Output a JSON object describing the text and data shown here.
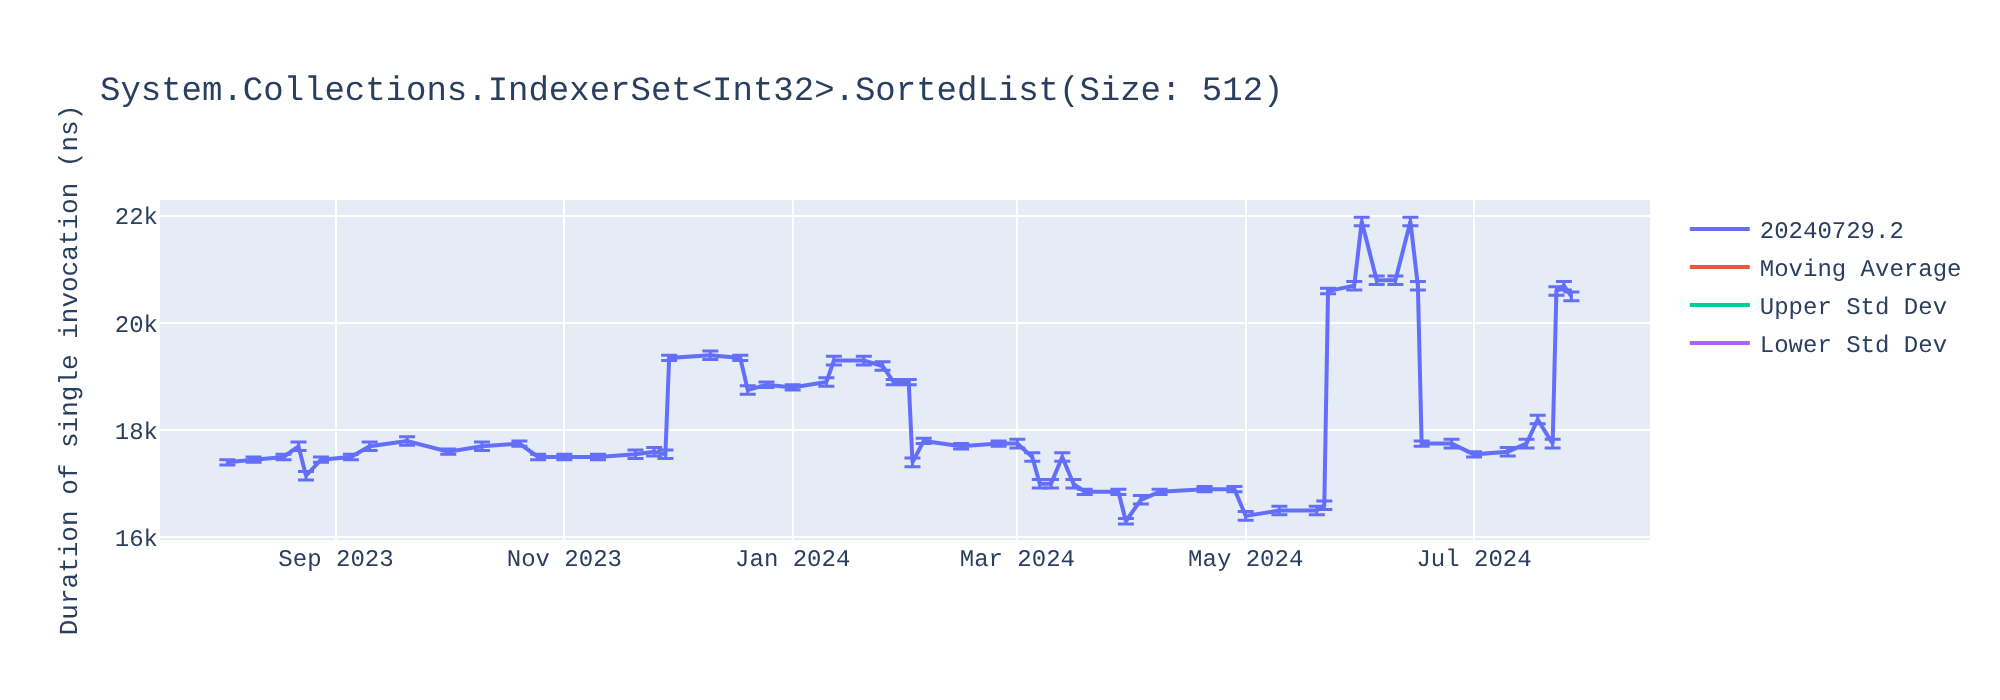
{
  "chart_data": {
    "type": "line",
    "title": "System.Collections.IndexerSet<Int32>.SortedList(Size: 512)",
    "ylabel": "Duration of single invocation (ns)",
    "x": [
      "2023-08-03",
      "2023-08-10",
      "2023-08-18",
      "2023-08-22",
      "2023-08-24",
      "2023-08-28",
      "2023-09-05",
      "2023-09-10",
      "2023-09-20",
      "2023-10-01",
      "2023-10-10",
      "2023-10-20",
      "2023-10-25",
      "2023-11-01",
      "2023-11-10",
      "2023-11-20",
      "2023-11-25",
      "2023-11-28",
      "2023-11-29",
      "2023-12-10",
      "2023-12-18",
      "2023-12-20",
      "2023-12-25",
      "2024-01-01",
      "2024-01-10",
      "2024-01-12",
      "2024-01-20",
      "2024-01-25",
      "2024-01-28",
      "2024-02-01",
      "2024-02-02",
      "2024-02-05",
      "2024-02-15",
      "2024-02-25",
      "2024-03-01",
      "2024-03-05",
      "2024-03-07",
      "2024-03-10",
      "2024-03-13",
      "2024-03-16",
      "2024-03-19",
      "2024-03-28",
      "2024-03-30",
      "2024-04-03",
      "2024-04-08",
      "2024-04-20",
      "2024-04-28",
      "2024-05-01",
      "2024-05-10",
      "2024-05-20",
      "2024-05-22",
      "2024-05-23",
      "2024-05-30",
      "2024-06-01",
      "2024-06-05",
      "2024-06-10",
      "2024-06-14",
      "2024-06-16",
      "2024-06-17",
      "2024-06-25",
      "2024-07-01",
      "2024-07-10",
      "2024-07-15",
      "2024-07-18",
      "2024-07-22",
      "2024-07-23",
      "2024-07-25",
      "2024-07-27"
    ],
    "series": [
      {
        "name": "20240729.2",
        "color": "#636efa",
        "values": [
          17400,
          17450,
          17500,
          17700,
          17150,
          17450,
          17500,
          17700,
          17800,
          17600,
          17700,
          17750,
          17500,
          17500,
          17500,
          17550,
          17600,
          17550,
          19350,
          19400,
          19350,
          18750,
          18850,
          18800,
          18900,
          19300,
          19300,
          19200,
          18900,
          18900,
          17400,
          17800,
          17700,
          17750,
          17750,
          17500,
          17000,
          17000,
          17500,
          17000,
          16850,
          16850,
          16300,
          16700,
          16850,
          16900,
          16900,
          16400,
          16500,
          16500,
          16600,
          20600,
          20700,
          21900,
          20800,
          20800,
          21900,
          20700,
          17750,
          17750,
          17550,
          17600,
          17750,
          18200,
          17750,
          20600,
          20700,
          20500
        ],
        "errors": [
          50,
          50,
          50,
          80,
          80,
          50,
          50,
          80,
          80,
          50,
          80,
          50,
          50,
          50,
          50,
          80,
          80,
          80,
          50,
          80,
          50,
          80,
          50,
          50,
          80,
          80,
          80,
          80,
          50,
          50,
          80,
          50,
          50,
          50,
          80,
          80,
          80,
          80,
          80,
          80,
          50,
          50,
          50,
          80,
          50,
          50,
          50,
          80,
          80,
          80,
          80,
          50,
          80,
          80,
          80,
          80,
          80,
          80,
          50,
          80,
          50,
          80,
          80,
          80,
          80,
          80,
          80,
          80
        ]
      },
      {
        "name": "Moving Average",
        "color": "#ef553b",
        "values": [
          null,
          null,
          null,
          null,
          null,
          null,
          null,
          null,
          null,
          null,
          null,
          null,
          null,
          null,
          null,
          null,
          null,
          null,
          null,
          null,
          null,
          null,
          null,
          null,
          null,
          null,
          null,
          null,
          null,
          null,
          null,
          null,
          null,
          null,
          null,
          null,
          null,
          null,
          null,
          null,
          null,
          null,
          null,
          null,
          null,
          null,
          null,
          null,
          null,
          null,
          null,
          null,
          null,
          null,
          null,
          null,
          null,
          null,
          null,
          null,
          null,
          null,
          null,
          null,
          null,
          null,
          null,
          null
        ]
      },
      {
        "name": "Upper Std Dev",
        "color": "#00cc96",
        "values": [
          null,
          null,
          null,
          null,
          null,
          null,
          null,
          null,
          null,
          null,
          null,
          null,
          null,
          null,
          null,
          null,
          null,
          null,
          null,
          null,
          null,
          null,
          null,
          null,
          null,
          null,
          null,
          null,
          null,
          null,
          null,
          null,
          null,
          null,
          null,
          null,
          null,
          null,
          null,
          null,
          null,
          null,
          null,
          null,
          null,
          null,
          null,
          null,
          null,
          null,
          null,
          null,
          null,
          null,
          null,
          null,
          null,
          null,
          null,
          null,
          null,
          null,
          null,
          null,
          null,
          null,
          null,
          null
        ]
      },
      {
        "name": "Lower Std Dev",
        "color": "#ab63fa",
        "values": [
          null,
          null,
          null,
          null,
          null,
          null,
          null,
          null,
          null,
          null,
          null,
          null,
          null,
          null,
          null,
          null,
          null,
          null,
          null,
          null,
          null,
          null,
          null,
          null,
          null,
          null,
          null,
          null,
          null,
          null,
          null,
          null,
          null,
          null,
          null,
          null,
          null,
          null,
          null,
          null,
          null,
          null,
          null,
          null,
          null,
          null,
          null,
          null,
          null,
          null,
          null,
          null,
          null,
          null,
          null,
          null,
          null,
          null,
          null,
          null,
          null,
          null,
          null,
          null,
          null,
          null,
          null,
          null
        ]
      }
    ],
    "xlim": [
      "2023-07-16",
      "2024-08-17"
    ],
    "xticks": [
      {
        "value": "2023-09-01",
        "label": "Sep 2023"
      },
      {
        "value": "2023-11-01",
        "label": "Nov 2023"
      },
      {
        "value": "2024-01-01",
        "label": "Jan 2024"
      },
      {
        "value": "2024-03-01",
        "label": "Mar 2024"
      },
      {
        "value": "2024-05-01",
        "label": "May 2024"
      },
      {
        "value": "2024-07-01",
        "label": "Jul 2024"
      }
    ],
    "ylim": [
      15950,
      22300
    ],
    "yticks": [
      {
        "value": 16000,
        "label": "16k"
      },
      {
        "value": 18000,
        "label": "18k"
      },
      {
        "value": 20000,
        "label": "20k"
      },
      {
        "value": 22000,
        "label": "22k"
      }
    ],
    "grid": true,
    "legend": "top right",
    "marker": "none",
    "line_style": "solid"
  }
}
